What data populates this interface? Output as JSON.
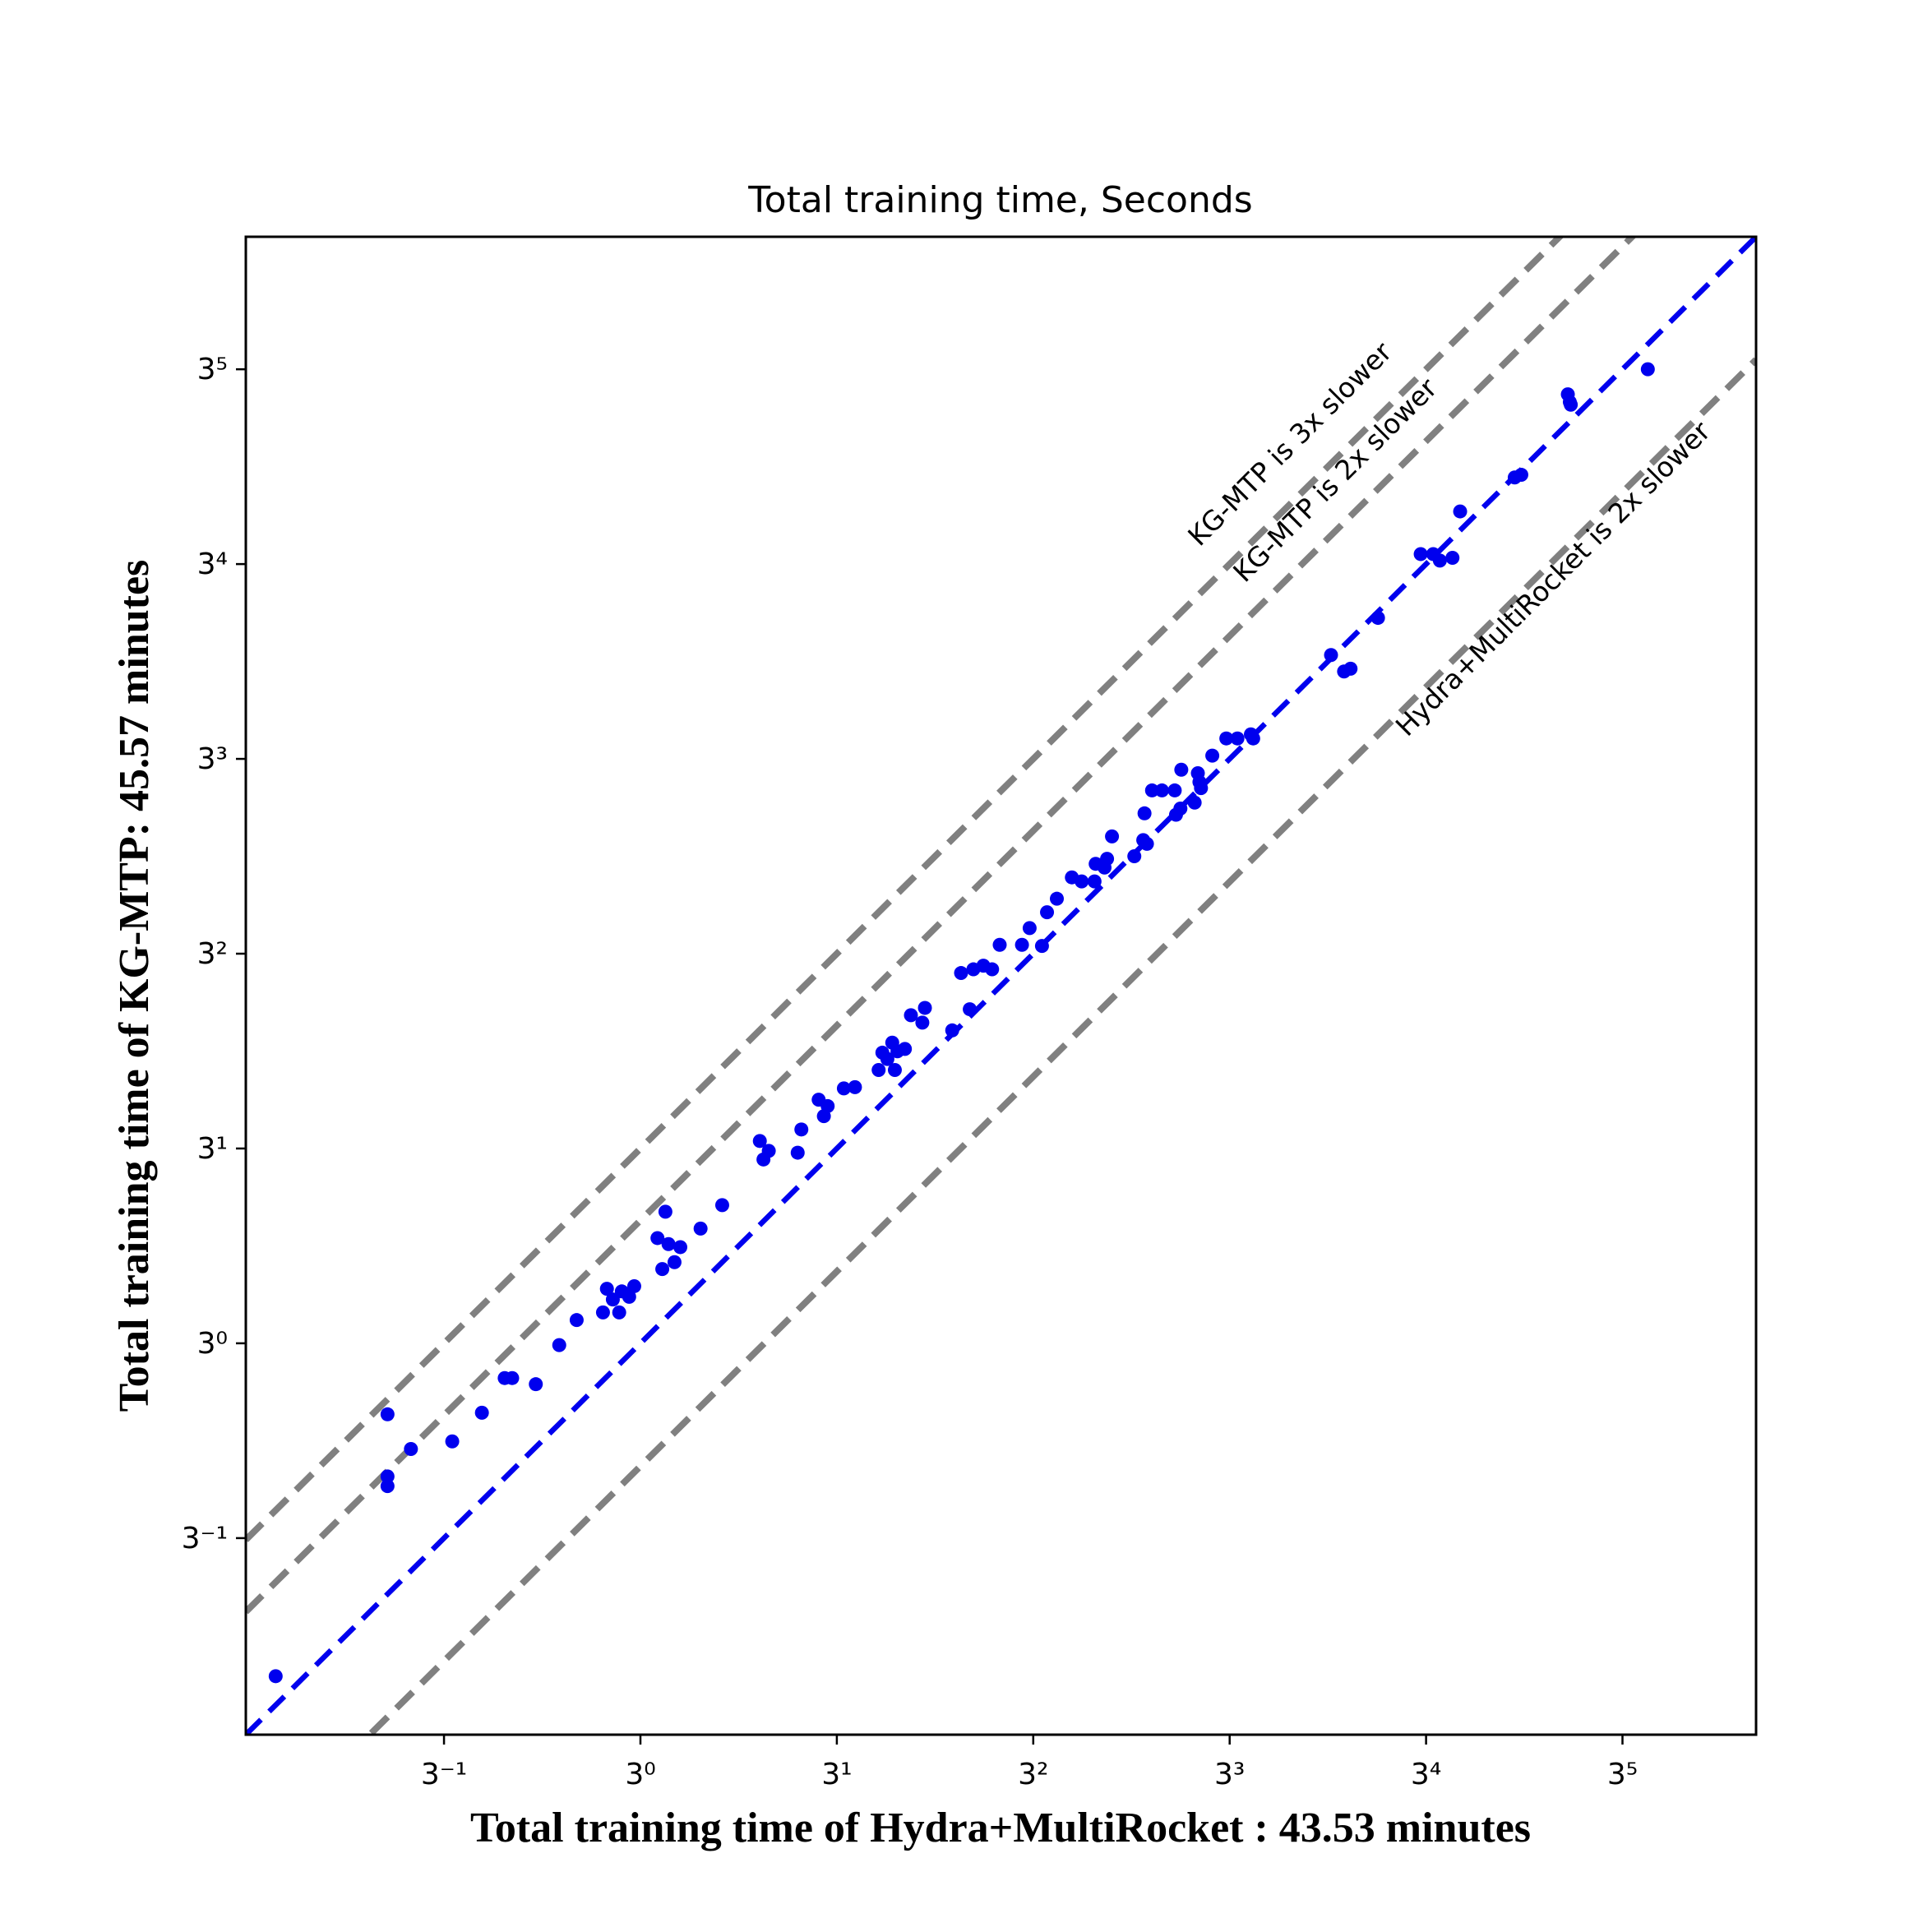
{
  "chart_data": {
    "type": "scatter",
    "title": "Total training time, Seconds",
    "x_label": "Total training time of Hydra+MultiRocket : 43.53 minutes",
    "y_label": "Total training time of KG-MTP: 45.57 minutes",
    "xscale": "log",
    "yscale": "log",
    "log_base": 3,
    "xlim": [
      0.11,
      513
    ],
    "ylim": [
      0.11,
      513
    ],
    "xticks": [
      {
        "value": 0.3333,
        "label": "3⁻¹"
      },
      {
        "value": 1,
        "label": "3⁰"
      },
      {
        "value": 3,
        "label": "3¹"
      },
      {
        "value": 9,
        "label": "3²"
      },
      {
        "value": 27,
        "label": "3³"
      },
      {
        "value": 81,
        "label": "3⁴"
      },
      {
        "value": 243,
        "label": "3⁵"
      }
    ],
    "yticks": [
      {
        "value": 0.3333,
        "label": "3⁻¹"
      },
      {
        "value": 1,
        "label": "3⁰"
      },
      {
        "value": 3,
        "label": "3¹"
      },
      {
        "value": 9,
        "label": "3²"
      },
      {
        "value": 27,
        "label": "3³"
      },
      {
        "value": 81,
        "label": "3⁴"
      },
      {
        "value": 243,
        "label": "3⁵"
      }
    ],
    "reference_lines": [
      {
        "factor": 3,
        "color": "#808080",
        "label": "KG-MTP is 3x slower"
      },
      {
        "factor": 2,
        "color": "#808080",
        "label": "KG-MTP is 2x slower"
      },
      {
        "factor": 0.5,
        "color": "#808080",
        "label": "Hydra+MultiRocket is 2x slower"
      },
      {
        "factor": 1,
        "color": "#0000ee"
      }
    ],
    "series": [
      {
        "color": "#0000ee",
        "x": [
          0.13,
          0.243,
          0.243,
          0.243,
          0.277,
          0.349,
          0.412,
          0.468,
          0.488,
          0.557,
          0.635,
          0.7,
          0.811,
          0.829,
          0.857,
          0.888,
          0.901,
          0.939,
          0.966,
          1.1,
          1.15,
          1.13,
          1.17,
          1.21,
          1.25,
          1.4,
          1.58,
          1.95,
          1.99,
          2.05,
          2.41,
          2.46,
          2.71,
          2.79,
          2.85,
          3.12,
          3.32,
          3.79,
          3.87,
          3.98,
          4.09,
          4.15,
          4.21,
          4.39,
          4.54,
          4.84,
          4.91,
          5.72,
          6.31,
          6.01,
          6.44,
          6.81,
          7.15,
          7.46,
          8.45,
          8.82,
          9.45,
          9.72,
          10.27,
          11.17,
          11.8,
          12.68,
          12.76,
          13.41,
          13.6,
          13.98,
          15.84,
          16.65,
          17.0,
          16.77,
          17.49,
          18.49,
          19.86,
          20.0,
          20.5,
          20.6,
          22.2,
          22.8,
          23.0,
          22.6,
          24.5,
          26.5,
          28.2,
          30.4,
          30.8,
          47.6,
          51.2,
          53.1,
          61.9,
          78.6,
          84.3,
          87.5,
          93.9,
          98.0,
          133,
          138,
          179,
          181,
          182,
          280
        ],
        "values": [
          0.153,
          0.67,
          0.472,
          0.447,
          0.551,
          0.575,
          0.676,
          0.822,
          0.822,
          0.794,
          0.99,
          1.14,
          1.19,
          1.36,
          1.28,
          1.19,
          1.34,
          1.3,
          1.38,
          1.81,
          2.1,
          1.52,
          1.75,
          1.58,
          1.72,
          1.91,
          2.18,
          3.13,
          2.82,
          2.96,
          2.93,
          3.34,
          3.95,
          3.6,
          3.81,
          4.21,
          4.24,
          4.67,
          5.15,
          4.97,
          5.45,
          4.67,
          5.19,
          5.26,
          6.36,
          6.1,
          6.63,
          5.84,
          6.58,
          8.07,
          8.24,
          8.41,
          8.24,
          9.46,
          9.46,
          10.4,
          9.4,
          11.37,
          12.27,
          13.84,
          13.53,
          13.53,
          14.94,
          14.63,
          15.37,
          17.44,
          15.59,
          17.08,
          16.72,
          19.86,
          22.6,
          22.6,
          22.6,
          19.7,
          20.4,
          25.4,
          21.1,
          23.7,
          22.9,
          24.9,
          27.5,
          30.3,
          30.3,
          31.0,
          30.3,
          48.5,
          44.2,
          44.9,
          59.8,
          85.7,
          85.7,
          82.6,
          83.9,
          109,
          132,
          134,
          211,
          202,
          199,
          243
        ]
      }
    ]
  }
}
